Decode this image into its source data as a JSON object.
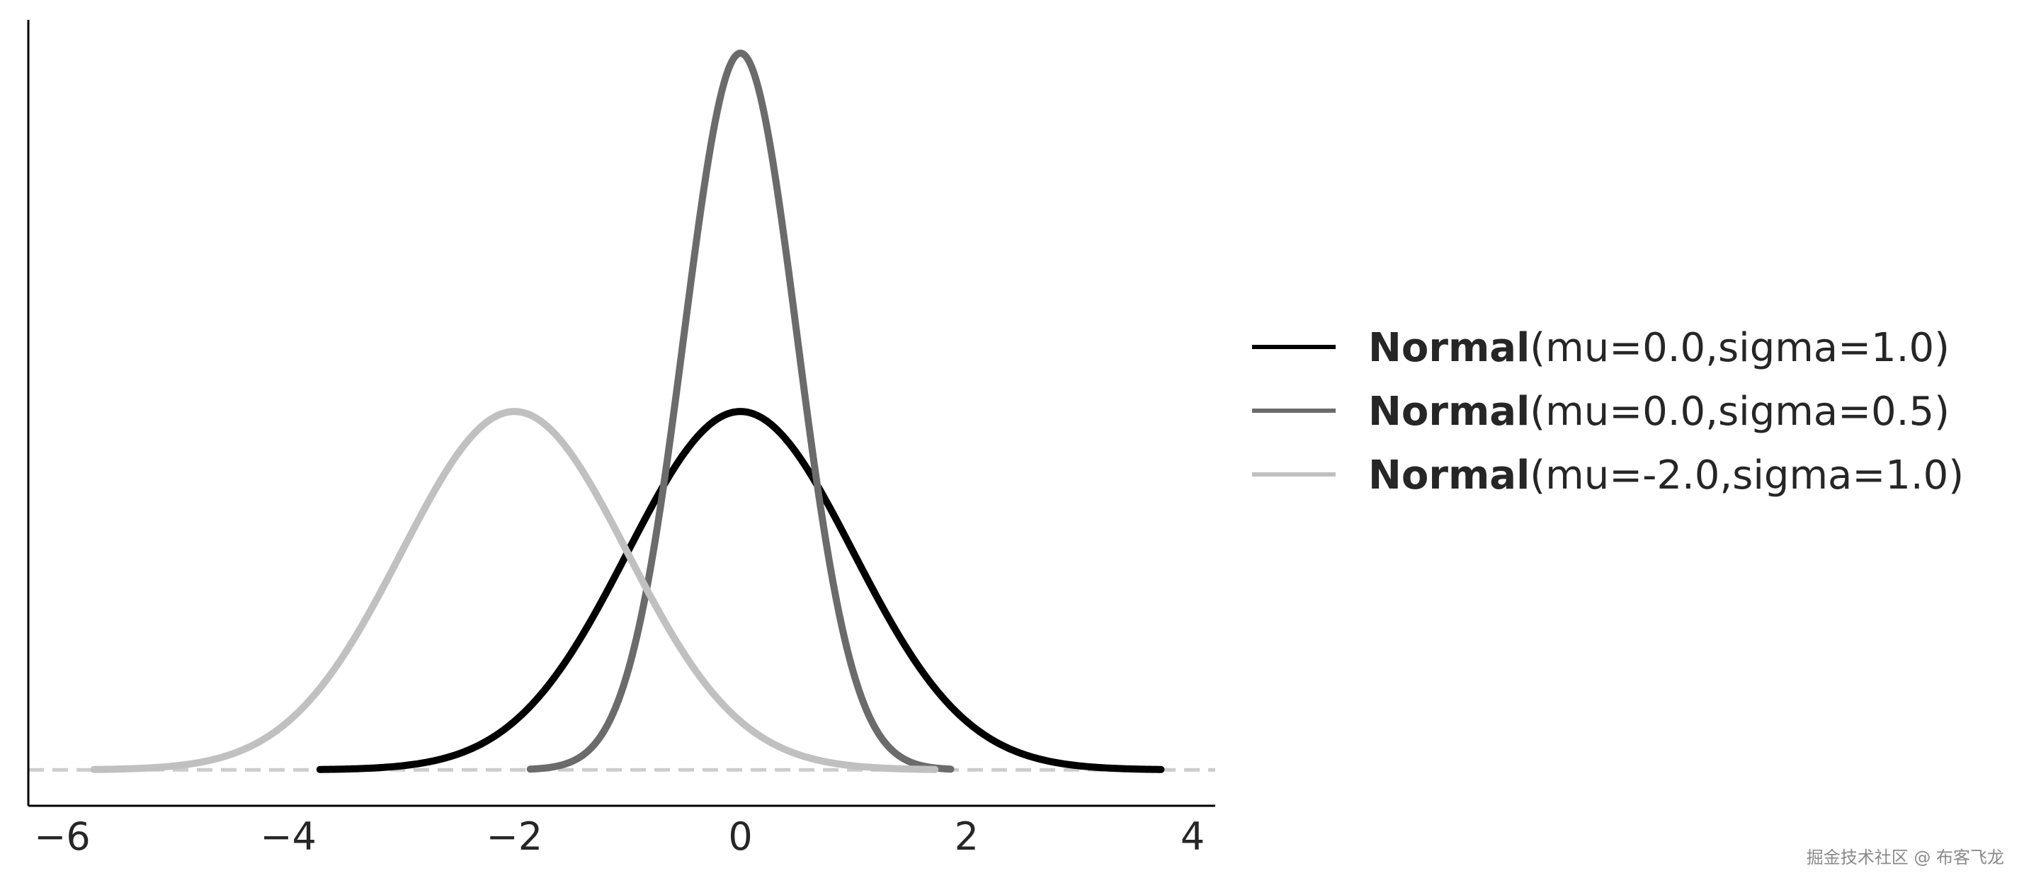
{
  "chart_data": {
    "type": "line",
    "title": "",
    "xlabel": "",
    "ylabel": "",
    "xlim": [
      -6.3,
      4.2
    ],
    "ylim": [
      -0.04,
      0.835
    ],
    "xticks": [
      -6,
      -4,
      -2,
      0,
      2,
      4
    ],
    "xtick_labels": [
      "−6",
      "−4",
      "−2",
      "0",
      "2",
      "4"
    ],
    "yticks_visible": false,
    "baseline": {
      "y": 0,
      "style": "dashed",
      "color": "#cccccc"
    },
    "legend_position": "right",
    "series": [
      {
        "name": "Normal(mu=0.0,sigma=1.0)",
        "legend_bold": "Normal",
        "legend_params": "(mu=0.0,sigma=1.0)",
        "distribution": "normal",
        "mu": 0.0,
        "sigma": 1.0,
        "x_range": [
          -3.72,
          3.72
        ],
        "color": "#000000"
      },
      {
        "name": "Normal(mu=0.0,sigma=0.5)",
        "legend_bold": "Normal",
        "legend_params": "(mu=0.0,sigma=0.5)",
        "distribution": "normal",
        "mu": 0.0,
        "sigma": 0.5,
        "x_range": [
          -1.86,
          1.86
        ],
        "color": "#6b6b6b"
      },
      {
        "name": "Normal(mu=-2.0,sigma=1.0)",
        "legend_bold": "Normal",
        "legend_params": "(mu=-2.0,sigma=1.0)",
        "distribution": "normal",
        "mu": -2.0,
        "sigma": 1.0,
        "x_range": [
          -5.72,
          1.72
        ],
        "color": "#c0c0c0"
      }
    ]
  },
  "watermark": "掘金技术社区 @ 布客飞龙"
}
